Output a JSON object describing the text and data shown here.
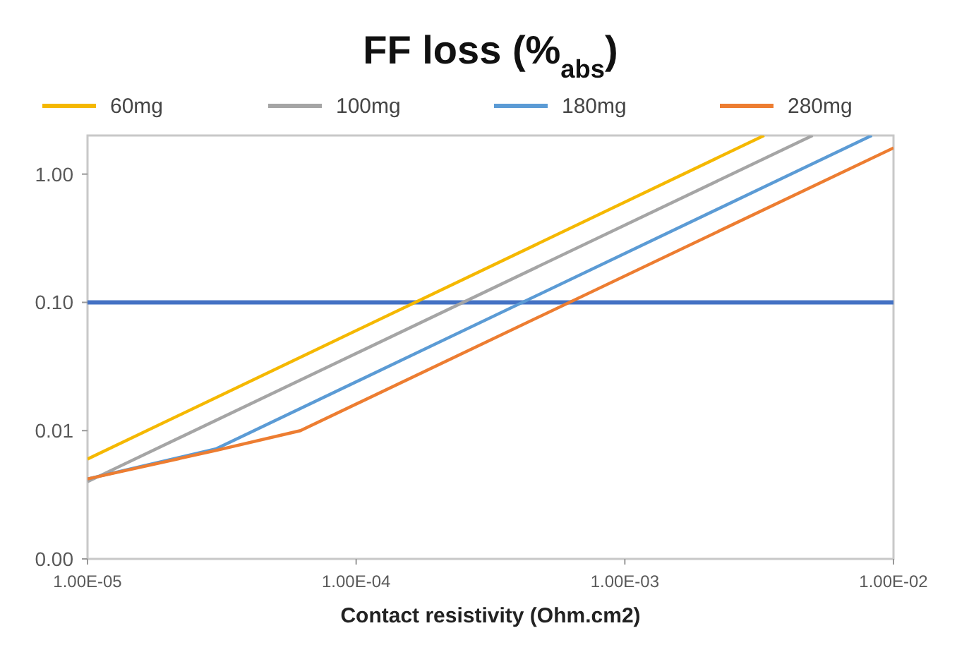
{
  "chart_data": {
    "type": "line",
    "title": "FF loss (%$_{abs}$)",
    "xlabel": "Contact resistivity (Ohm.cm2)",
    "log": "xy",
    "grid": false,
    "legend": "top",
    "marker": "none",
    "line_style": "solid",
    "xlim": [
      1e-05,
      0.01
    ],
    "xticks": [
      {
        "value": 1e-05,
        "label": "1.00E-05"
      },
      {
        "value": 0.0001,
        "label": "1.00E-04"
      },
      {
        "value": 0.001,
        "label": "1.00E-03"
      },
      {
        "value": 0.01,
        "label": "1.00E-02"
      }
    ],
    "ylim": [
      0.001,
      2
    ],
    "yticks": [
      {
        "value": 0.001,
        "label": "0.00"
      },
      0.01,
      {
        "value": 0.1,
        "label": "0.10"
      },
      {
        "value": 1,
        "label": "1.00"
      }
    ],
    "series": [
      {
        "name": "60mg",
        "color": "#f5b800",
        "x": [
          1e-05,
          0.0033
        ],
        "values": [
          0.006,
          2
        ]
      },
      {
        "name": "100mg",
        "color": "#a5a5a5",
        "x": [
          1e-05,
          0.005
        ],
        "values": [
          0.004,
          2
        ]
      },
      {
        "name": "180mg",
        "color": "#5b9bd5",
        "x": [
          1e-05,
          3e-05,
          0.0083
        ],
        "values": [
          0.0042,
          0.0072,
          2
        ]
      },
      {
        "name": "280mg",
        "color": "#ed7d31",
        "x": [
          1e-05,
          3e-05,
          6.2e-05,
          0.01
        ],
        "values": [
          0.0042,
          0.007,
          0.01,
          1.6
        ]
      }
    ],
    "ref_lines": [
      {
        "axis": "y",
        "value": 0.1,
        "color": "#4472c4",
        "line_style": "solid"
      }
    ]
  }
}
